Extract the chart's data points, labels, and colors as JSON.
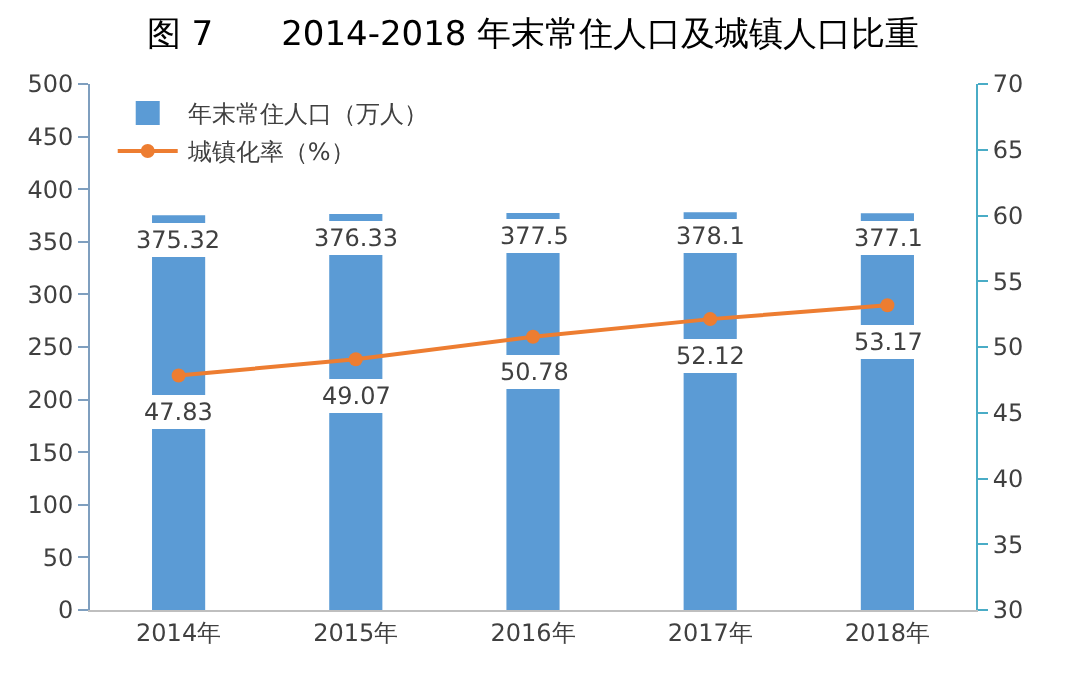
{
  "chart_data": {
    "type": "bar",
    "title": "图 7　　2014-2018 年末常住人口及城镇人口比重",
    "categories": [
      "2014年",
      "2015年",
      "2016年",
      "2017年",
      "2018年"
    ],
    "series": [
      {
        "name": "年末常住人口（万人）",
        "color": "#5b9bd5",
        "values": [
          375.32,
          376.33,
          377.5,
          378.1,
          377.1
        ]
      },
      {
        "name": "城镇化率（%）",
        "type": "line",
        "axis": "y2",
        "color": "#ed7d31",
        "marker": "circle",
        "values": [
          47.83,
          49.07,
          50.78,
          52.12,
          53.17
        ]
      }
    ],
    "ylim": [
      0,
      500
    ],
    "yticks": [
      0,
      50,
      100,
      150,
      200,
      250,
      300,
      350,
      400,
      450,
      500
    ],
    "y2lim": [
      30,
      70
    ],
    "y2ticks": [
      30,
      35,
      40,
      45,
      50,
      55,
      60,
      65,
      70
    ],
    "data_labels": true,
    "grid": false,
    "legend": "top left"
  }
}
